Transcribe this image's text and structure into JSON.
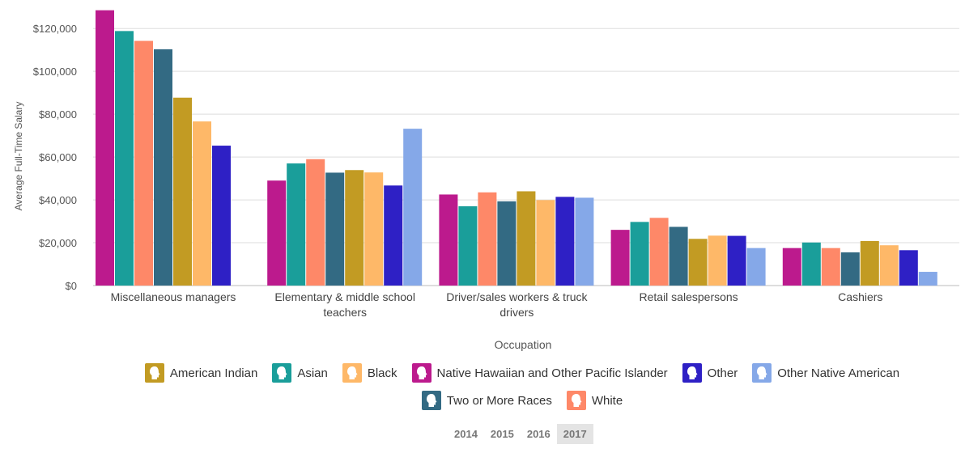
{
  "chart_data": {
    "type": "bar",
    "title": "",
    "xlabel": "Occupation",
    "ylabel": "Average Full-Time Salary",
    "ylim": [
      0,
      128000
    ],
    "yticks": [
      "$0",
      "$20,000",
      "$40,000",
      "$60,000",
      "$80,000",
      "$100,000",
      "$120,000"
    ],
    "ytick_values": [
      0,
      20000,
      40000,
      60000,
      80000,
      100000,
      120000
    ],
    "grid": true,
    "legend_position": "bottom",
    "categories": [
      [
        "Miscellaneous managers"
      ],
      [
        "Elementary & middle school",
        "teachers"
      ],
      [
        "Driver/sales workers & truck",
        "drivers"
      ],
      [
        "Retail salespersons"
      ],
      [
        "Cashiers"
      ]
    ],
    "series": [
      {
        "name": "Native Hawaiian and Other Pacific Islander",
        "color": "#bc1a8d",
        "values": [
          128500,
          49000,
          42500,
          26000,
          17500
        ]
      },
      {
        "name": "Asian",
        "color": "#1a9e9a",
        "values": [
          118800,
          57000,
          37000,
          29700,
          20100
        ]
      },
      {
        "name": "White",
        "color": "#fe8868",
        "values": [
          114200,
          59000,
          43500,
          31600,
          17500
        ]
      },
      {
        "name": "Two or More Races",
        "color": "#336a83",
        "values": [
          110300,
          52700,
          39300,
          27400,
          15500
        ]
      },
      {
        "name": "American Indian",
        "color": "#c29b23",
        "values": [
          87700,
          53900,
          44000,
          21800,
          20800
        ]
      },
      {
        "name": "Black",
        "color": "#feb868",
        "values": [
          76600,
          52800,
          39900,
          23300,
          18800
        ]
      },
      {
        "name": "Other",
        "color": "#2e20c5",
        "values": [
          65300,
          46700,
          41400,
          23200,
          16500
        ]
      },
      {
        "name": "Other Native American",
        "color": "#85a8e8",
        "values": [
          null,
          73200,
          41000,
          17500,
          6400
        ]
      }
    ]
  },
  "legend": [
    {
      "label": "American Indian",
      "color": "#c29b23",
      "icon": "person-head-icon"
    },
    {
      "label": "Asian",
      "color": "#1a9e9a",
      "icon": "person-head-icon"
    },
    {
      "label": "Black",
      "color": "#feb868",
      "icon": "person-head-icon"
    },
    {
      "label": "Native Hawaiian and Other Pacific Islander",
      "color": "#bc1a8d",
      "icon": "person-head-icon"
    },
    {
      "label": "Other",
      "color": "#2e20c5",
      "icon": "person-head-icon"
    },
    {
      "label": "Other Native American",
      "color": "#85a8e8",
      "icon": "person-head-icon"
    },
    {
      "label": "Two or More Races",
      "color": "#336a83",
      "icon": "person-head-icon"
    },
    {
      "label": "White",
      "color": "#fe8868",
      "icon": "person-head-icon"
    }
  ],
  "years": {
    "items": [
      "2014",
      "2015",
      "2016",
      "2017"
    ],
    "selected": "2017"
  }
}
